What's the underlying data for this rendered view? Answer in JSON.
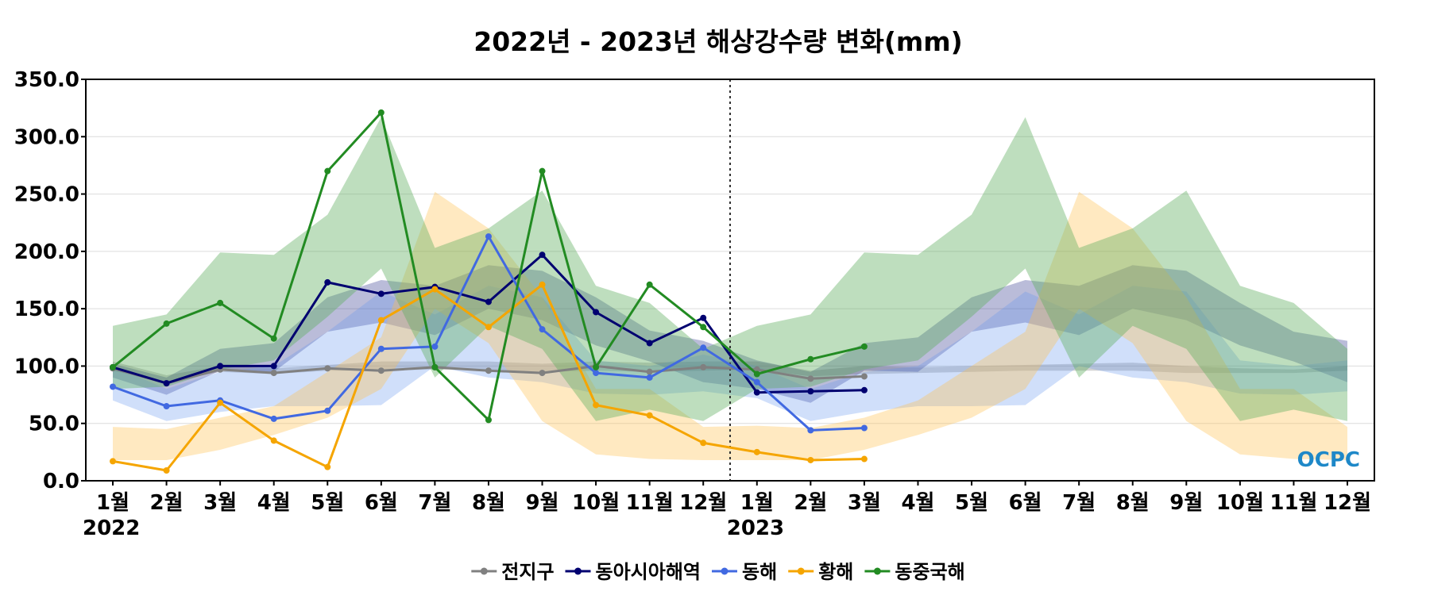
{
  "chart_data": {
    "type": "line",
    "title": "2022년 - 2023년 해상강수량 변화(mm)",
    "ylim": [
      0,
      350
    ],
    "yticks": [
      "0.0",
      "50.0",
      "100.0",
      "150.0",
      "200.0",
      "250.0",
      "300.0",
      "350.0"
    ],
    "grid": true,
    "legend_position": "bottom",
    "x_labels": [
      "1월",
      "2월",
      "3월",
      "4월",
      "5월",
      "6월",
      "7월",
      "8월",
      "9월",
      "10월",
      "11월",
      "12월",
      "1월",
      "2월",
      "3월",
      "4월",
      "5월",
      "6월",
      "7월",
      "8월",
      "9월",
      "10월",
      "11월",
      "12월"
    ],
    "year_labels": [
      {
        "label": "2022",
        "index": 0
      },
      {
        "label": "2023",
        "index": 12
      }
    ],
    "divider_after_index": 11,
    "logo_text": "OCPC",
    "series": [
      {
        "name": "전지구",
        "color": "#808080",
        "band_color": "#808080",
        "band_opacity": 0.35,
        "values": [
          98,
          85,
          97,
          94,
          98,
          96,
          99,
          96,
          94,
          100,
          95,
          99,
          97,
          89,
          91
        ],
        "band_upper": [
          104,
          92,
          100,
          98,
          101,
          104,
          104,
          104,
          102,
          104,
          103,
          104,
          104,
          96,
          100,
          99,
          100,
          101,
          102,
          103,
          100,
          98,
          97,
          100
        ],
        "band_lower": [
          96,
          86,
          95,
          93,
          96,
          96,
          97,
          96,
          95,
          96,
          95,
          96,
          97,
          91,
          93,
          94,
          95,
          96,
          96,
          96,
          94,
          94,
          94,
          96
        ]
      },
      {
        "name": "동아시아해역",
        "color": "#000070",
        "band_color": "#1a2080",
        "band_opacity": 0.3,
        "values": [
          99,
          85,
          100,
          100,
          173,
          163,
          169,
          156,
          197,
          147,
          120,
          142,
          77,
          78,
          79
        ],
        "band_upper": [
          102,
          90,
          115,
          120,
          160,
          175,
          170,
          188,
          183,
          160,
          131,
          122,
          105,
          95,
          120,
          125,
          160,
          175,
          170,
          188,
          183,
          155,
          130,
          122
        ],
        "band_lower": [
          90,
          75,
          96,
          95,
          130,
          138,
          127,
          150,
          140,
          118,
          104,
          86,
          80,
          68,
          96,
          95,
          130,
          138,
          127,
          150,
          140,
          118,
          104,
          86
        ]
      },
      {
        "name": "동해",
        "color": "#4169E1",
        "band_color": "#6495ED",
        "band_opacity": 0.3,
        "values": [
          82,
          65,
          70,
          54,
          61,
          115,
          117,
          213,
          132,
          94,
          90,
          116,
          86,
          44,
          46
        ],
        "band_upper": [
          100,
          80,
          95,
          100,
          130,
          165,
          145,
          170,
          160,
          105,
          100,
          110,
          100,
          80,
          95,
          100,
          130,
          165,
          145,
          170,
          165,
          105,
          100,
          105
        ],
        "band_lower": [
          70,
          52,
          60,
          65,
          65,
          66,
          100,
          90,
          86,
          76,
          75,
          78,
          72,
          52,
          60,
          65,
          65,
          66,
          100,
          90,
          86,
          76,
          75,
          78
        ]
      },
      {
        "name": "황해",
        "color": "#F5A500",
        "band_color": "#FFC04D",
        "band_opacity": 0.35,
        "values": [
          17,
          9,
          68,
          35,
          12,
          140,
          167,
          134,
          171,
          66,
          57,
          33,
          25,
          18,
          19
        ],
        "band_upper": [
          47,
          45,
          55,
          65,
          95,
          125,
          252,
          220,
          160,
          80,
          80,
          47,
          48,
          46,
          55,
          70,
          100,
          130,
          252,
          220,
          160,
          80,
          80,
          47
        ],
        "band_lower": [
          18,
          18,
          27,
          40,
          55,
          80,
          150,
          120,
          52,
          23,
          19,
          18,
          18,
          18,
          27,
          40,
          55,
          80,
          150,
          120,
          52,
          23,
          19,
          18
        ]
      },
      {
        "name": "동중국해",
        "color": "#228B22",
        "band_color": "#5DAD5D",
        "band_opacity": 0.4,
        "values": [
          99,
          137,
          155,
          124,
          270,
          321,
          99,
          53,
          270,
          99,
          171,
          134,
          93,
          106,
          117
        ],
        "band_upper": [
          135,
          145,
          199,
          197,
          232,
          317,
          203,
          220,
          253,
          170,
          155,
          115,
          135,
          145,
          199,
          197,
          232,
          317,
          203,
          220,
          253,
          170,
          155,
          115
        ],
        "band_lower": [
          80,
          82,
          97,
          105,
          143,
          185,
          90,
          135,
          115,
          52,
          62,
          52,
          80,
          82,
          97,
          105,
          143,
          185,
          90,
          135,
          115,
          52,
          62,
          52
        ]
      }
    ]
  }
}
